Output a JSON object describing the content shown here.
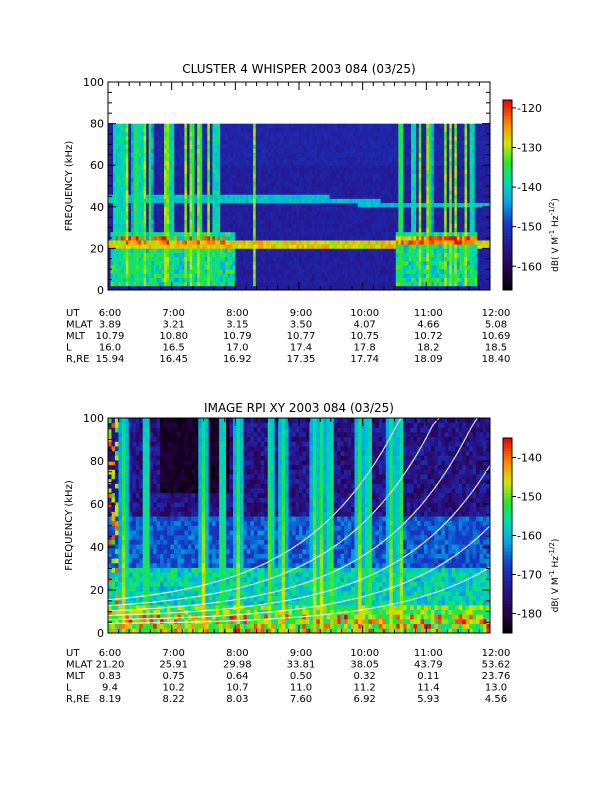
{
  "chart_data": [
    {
      "type": "heatmap",
      "title": "CLUSTER 4 WHISPER 2003 084 (03/25)",
      "ylabel": "FREQUENCY (kHz)",
      "ylim": [
        0,
        100
      ],
      "y_ticks": [
        "0",
        "20",
        "40",
        "60",
        "80",
        "100"
      ],
      "x_ticks": [
        "6:00",
        "7:00",
        "8:00",
        "9:00",
        "10:00",
        "11:00",
        "12:00"
      ],
      "data_ceiling_khz": 80,
      "colorbar": {
        "label": "dB( V M",
        "sup1": "-1",
        "mid": " Hz",
        "sup2": "-1/2",
        "close": ")",
        "range": [
          -166,
          -118
        ],
        "ticks": [
          "-120",
          "-130",
          "-140",
          "-150",
          "-160"
        ]
      },
      "orbit": {
        "rows": [
          {
            "label": "UT",
            "values": [
              "6:00",
              "7:00",
              "8:00",
              "9:00",
              "10:00",
              "11:00",
              "12:00"
            ]
          },
          {
            "label": "MLAT",
            "values": [
              "3.89",
              "3.21",
              "3.15",
              "3.50",
              "4.07",
              "4.66",
              "5.08"
            ]
          },
          {
            "label": "MLT",
            "values": [
              "10.79",
              "10.80",
              "10.79",
              "10.77",
              "10.75",
              "10.72",
              "10.69"
            ]
          },
          {
            "label": "L",
            "values": [
              "16.0",
              "16.5",
              "17.0",
              "17.4",
              "17.8",
              "18.2",
              "18.5"
            ]
          },
          {
            "label": "R,RE",
            "values": [
              "15.94",
              "16.45",
              "16.92",
              "17.35",
              "17.74",
              "18.09",
              "18.40"
            ]
          }
        ]
      }
    },
    {
      "type": "heatmap",
      "title": "IMAGE RPI XY 2003 084 (03/25)",
      "ylabel": "FREQUENCY (kHz)",
      "ylim": [
        0,
        100
      ],
      "y_ticks": [
        "0",
        "20",
        "40",
        "60",
        "80",
        "100"
      ],
      "x_ticks": [
        "6:00",
        "7:00",
        "8:00",
        "9:00",
        "10:00",
        "11:00",
        "12:00"
      ],
      "colorbar": {
        "label": "dB( V M",
        "sup1": "-1",
        "mid": " Hz",
        "sup2": "-1/2",
        "close": ")",
        "range": [
          -185,
          -135
        ],
        "ticks": [
          "-140",
          "-150",
          "-160",
          "-170",
          "-180"
        ]
      },
      "orbit": {
        "rows": [
          {
            "label": "UT",
            "values": [
              "6:00",
              "7:00",
              "8:00",
              "9:00",
              "10:00",
              "11:00",
              "12:00"
            ]
          },
          {
            "label": "MLAT",
            "values": [
              "21.20",
              "25.91",
              "29.98",
              "33.81",
              "38.05",
              "43.79",
              "53.62"
            ]
          },
          {
            "label": "MLT",
            "values": [
              "0.83",
              "0.75",
              "0.64",
              "0.50",
              "0.32",
              "0.11",
              "23.76"
            ]
          },
          {
            "label": "L",
            "values": [
              "9.4",
              "10.2",
              "10.7",
              "11.0",
              "11.2",
              "11.4",
              "13.0"
            ]
          },
          {
            "label": "R,RE",
            "values": [
              "8.19",
              "8.22",
              "8.03",
              "7.60",
              "6.92",
              "5.93",
              "4.56"
            ]
          }
        ]
      }
    }
  ]
}
